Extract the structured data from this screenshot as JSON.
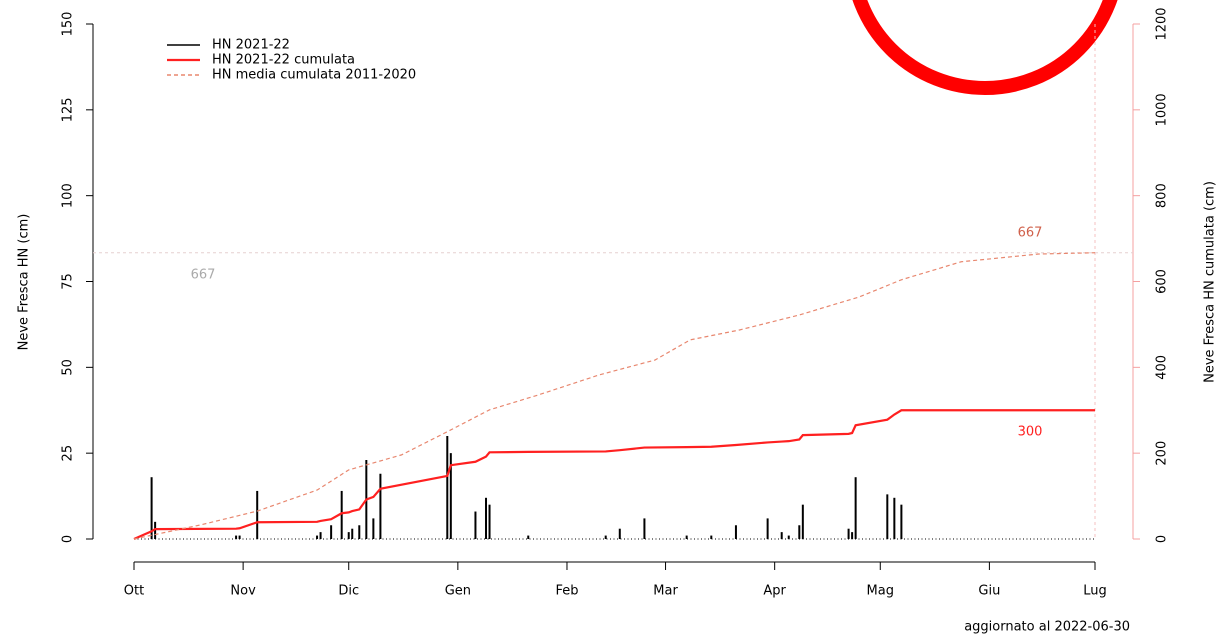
{
  "chart_data": {
    "type": "bar-line",
    "y_label": "Neve Fresca HN (cm)",
    "y2_label": "Neve Fresca HN cumulata (cm)",
    "footer": "aggiornato al  2022-06-30",
    "xlim": [
      0,
      273
    ],
    "xticks": [
      {
        "value": 0,
        "label": "Ott"
      },
      {
        "value": 31,
        "label": "Nov"
      },
      {
        "value": 61,
        "label": "Dic"
      },
      {
        "value": 92,
        "label": "Gen"
      },
      {
        "value": 123,
        "label": "Feb"
      },
      {
        "value": 151,
        "label": "Mar"
      },
      {
        "value": 182,
        "label": "Apr"
      },
      {
        "value": 212,
        "label": "Mag"
      },
      {
        "value": 243,
        "label": "Giu"
      },
      {
        "value": 273,
        "label": "Lug"
      }
    ],
    "ylim": [
      0,
      150
    ],
    "yticks": [
      0,
      25,
      50,
      75,
      100,
      125,
      150
    ],
    "y2lim": [
      0,
      1200
    ],
    "y2ticks": [
      0,
      200,
      400,
      600,
      800,
      1000,
      1200
    ],
    "hline_y2": 667,
    "annotations": [
      "667",
      "667",
      "300"
    ],
    "series": [
      {
        "name": "HN 2021-22",
        "color": "#000000",
        "kind": "bar",
        "x": [
          5,
          6,
          29,
          30,
          35,
          52,
          53,
          56,
          59,
          61,
          62,
          64,
          66,
          68,
          70,
          89,
          90,
          97,
          100,
          101,
          112,
          134,
          138,
          145,
          157,
          164,
          171,
          180,
          184,
          186,
          189,
          190,
          203,
          204,
          205,
          214,
          216,
          218
        ],
        "values": [
          18,
          5,
          1,
          1,
          14,
          1,
          2,
          4,
          14,
          2,
          3,
          4,
          23,
          6,
          19,
          30,
          25,
          8,
          12,
          10,
          1,
          1,
          3,
          6,
          1,
          1,
          4,
          6,
          2,
          1,
          4,
          10,
          3,
          2,
          18,
          13,
          12,
          10
        ]
      },
      {
        "name": "HN 2021-22 cumulata",
        "color": "#ff2020",
        "kind": "line",
        "axis": "y2",
        "x": [
          0,
          5,
          6,
          29,
          30,
          35,
          52,
          53,
          56,
          59,
          61,
          62,
          64,
          66,
          68,
          70,
          89,
          90,
          97,
          100,
          101,
          112,
          134,
          138,
          145,
          157,
          164,
          171,
          180,
          184,
          186,
          189,
          190,
          203,
          204,
          205,
          214,
          216,
          218,
          273
        ],
        "values": [
          0,
          18,
          23,
          24,
          25,
          39,
          40,
          42,
          46,
          60,
          62,
          65,
          69,
          92,
          98,
          117,
          147,
          172,
          180,
          192,
          202,
          203,
          204,
          207,
          213,
          214,
          215,
          219,
          225,
          227,
          228,
          232,
          242,
          245,
          247,
          265,
          278,
          290,
          300,
          300
        ]
      },
      {
        "name": "HN media cumulata 2011-2020",
        "color": "#e8876f",
        "kind": "dashed",
        "axis": "y2",
        "x": [
          0,
          19,
          35,
          52,
          61,
          76,
          89,
          101,
          115,
          132,
          148,
          158,
          172,
          189,
          206,
          218,
          235,
          257,
          273
        ],
        "values": [
          0,
          33,
          65,
          114,
          161,
          196,
          250,
          301,
          336,
          382,
          417,
          464,
          487,
          522,
          564,
          604,
          646,
          664,
          667
        ]
      }
    ]
  }
}
